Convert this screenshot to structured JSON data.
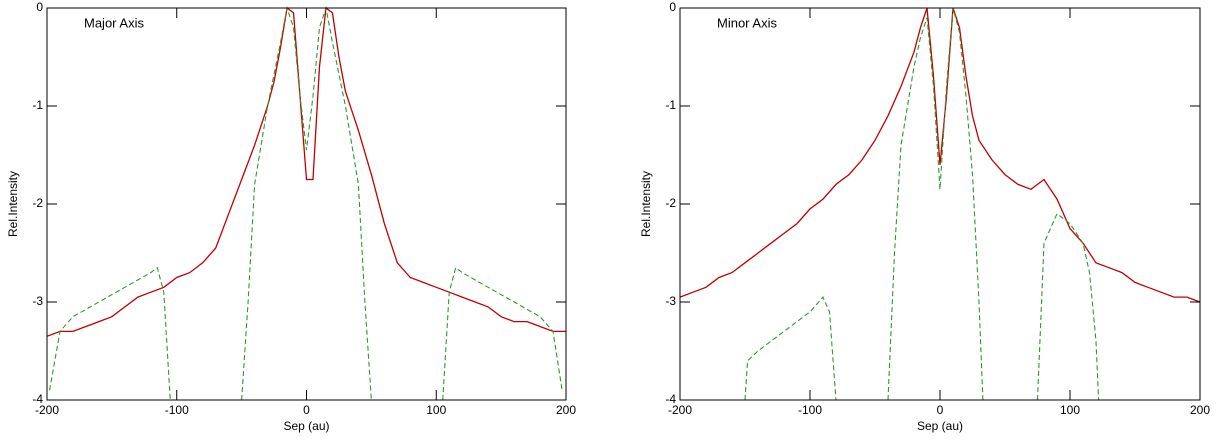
{
  "chart_data": [
    {
      "type": "line",
      "annotation": "Major Axis",
      "xlabel": "Sep (au)",
      "ylabel": "Rel.Intensity",
      "xlim": [
        -200,
        200
      ],
      "xticks": [
        -200,
        -100,
        0,
        100,
        200
      ],
      "ylim": [
        -4,
        0
      ],
      "yticks": [
        0,
        -1,
        -2,
        -3,
        -4
      ],
      "series": [
        {
          "color": "#c00000",
          "line_style": "solid",
          "x": [
            -200,
            -190,
            -180,
            -170,
            -160,
            -150,
            -140,
            -130,
            -120,
            -110,
            -100,
            -90,
            -80,
            -70,
            -60,
            -50,
            -40,
            -30,
            -25,
            -20,
            -15,
            -10,
            -5,
            0,
            5,
            10,
            15,
            20,
            25,
            30,
            40,
            50,
            60,
            70,
            80,
            90,
            100,
            110,
            120,
            130,
            140,
            150,
            160,
            170,
            180,
            190,
            200
          ],
          "values": [
            -3.35,
            -3.3,
            -3.3,
            -3.25,
            -3.2,
            -3.15,
            -3.05,
            -2.95,
            -2.9,
            -2.85,
            -2.75,
            -2.7,
            -2.6,
            -2.45,
            -2.1,
            -1.75,
            -1.4,
            -1.0,
            -0.75,
            -0.4,
            0,
            -0.05,
            -0.9,
            -1.75,
            -1.75,
            -0.6,
            0,
            -0.05,
            -0.5,
            -0.85,
            -1.25,
            -1.7,
            -2.2,
            -2.6,
            -2.75,
            -2.8,
            -2.85,
            -2.9,
            -2.95,
            -3.0,
            -3.05,
            -3.15,
            -3.2,
            -3.2,
            -3.25,
            -3.3,
            -3.3
          ]
        },
        {
          "color": "#2a9a2a",
          "line_style": "dashed",
          "x": [
            -198,
            -190,
            -180,
            -160,
            -140,
            -120,
            -115,
            -110,
            -105,
            null,
            -50,
            -45,
            -40,
            -30,
            -20,
            -15,
            -10,
            -5,
            0,
            5,
            10,
            15,
            20,
            30,
            40,
            45,
            50,
            null,
            105,
            110,
            115,
            120,
            140,
            160,
            180,
            190,
            197
          ],
          "values": [
            -3.9,
            -3.3,
            -3.15,
            -3.0,
            -2.85,
            -2.7,
            -2.65,
            -2.9,
            -4,
            null,
            -4,
            -3.0,
            -1.8,
            -1.0,
            -0.35,
            0,
            -0.2,
            -0.9,
            -1.45,
            -0.9,
            -0.2,
            0,
            -0.35,
            -1.0,
            -1.8,
            -3.0,
            -4,
            null,
            -4,
            -2.9,
            -2.65,
            -2.7,
            -2.85,
            -3.0,
            -3.15,
            -3.3,
            -3.9
          ]
        }
      ]
    },
    {
      "type": "line",
      "annotation": "Minor Axis",
      "xlabel": "Sep (au)",
      "ylabel": "Rel.Intensity",
      "xlim": [
        -200,
        200
      ],
      "xticks": [
        -200,
        -100,
        0,
        100,
        200
      ],
      "ylim": [
        -4,
        0
      ],
      "yticks": [
        0,
        -1,
        -2,
        -3,
        -4
      ],
      "series": [
        {
          "color": "#c00000",
          "line_style": "solid",
          "x": [
            -200,
            -190,
            -180,
            -170,
            -160,
            -150,
            -140,
            -130,
            -120,
            -110,
            -100,
            -90,
            -80,
            -70,
            -60,
            -50,
            -40,
            -30,
            -20,
            -15,
            -10,
            -5,
            0,
            5,
            10,
            15,
            20,
            25,
            30,
            40,
            50,
            60,
            70,
            80,
            90,
            100,
            110,
            120,
            130,
            140,
            150,
            160,
            170,
            180,
            190,
            200
          ],
          "values": [
            -2.95,
            -2.9,
            -2.85,
            -2.75,
            -2.7,
            -2.6,
            -2.5,
            -2.4,
            -2.3,
            -2.2,
            -2.05,
            -1.95,
            -1.8,
            -1.7,
            -1.55,
            -1.35,
            -1.1,
            -0.8,
            -0.45,
            -0.2,
            0,
            -0.7,
            -1.6,
            -0.9,
            0,
            -0.2,
            -0.7,
            -1.1,
            -1.35,
            -1.55,
            -1.7,
            -1.8,
            -1.85,
            -1.75,
            -1.95,
            -2.25,
            -2.4,
            -2.6,
            -2.65,
            -2.7,
            -2.8,
            -2.85,
            -2.9,
            -2.95,
            -2.95,
            -3.0
          ]
        },
        {
          "color": "#2a9a2a",
          "line_style": "dashed",
          "x": [
            -150,
            -148,
            -140,
            -120,
            -100,
            -90,
            -85,
            -80,
            null,
            -40,
            -35,
            -30,
            -20,
            -15,
            -10,
            -5,
            0,
            5,
            10,
            15,
            20,
            25,
            30,
            33,
            null,
            75,
            80,
            90,
            100,
            110,
            115,
            120,
            122
          ],
          "values": [
            -4,
            -3.6,
            -3.5,
            -3.3,
            -3.1,
            -2.95,
            -3.1,
            -4,
            null,
            -4,
            -2.5,
            -1.4,
            -0.6,
            -0.3,
            -0.1,
            -0.8,
            -1.85,
            -0.8,
            0,
            -0.25,
            -0.9,
            -1.7,
            -3.0,
            -4,
            null,
            -4,
            -2.4,
            -2.1,
            -2.2,
            -2.4,
            -2.7,
            -3.4,
            -4
          ]
        }
      ]
    }
  ]
}
